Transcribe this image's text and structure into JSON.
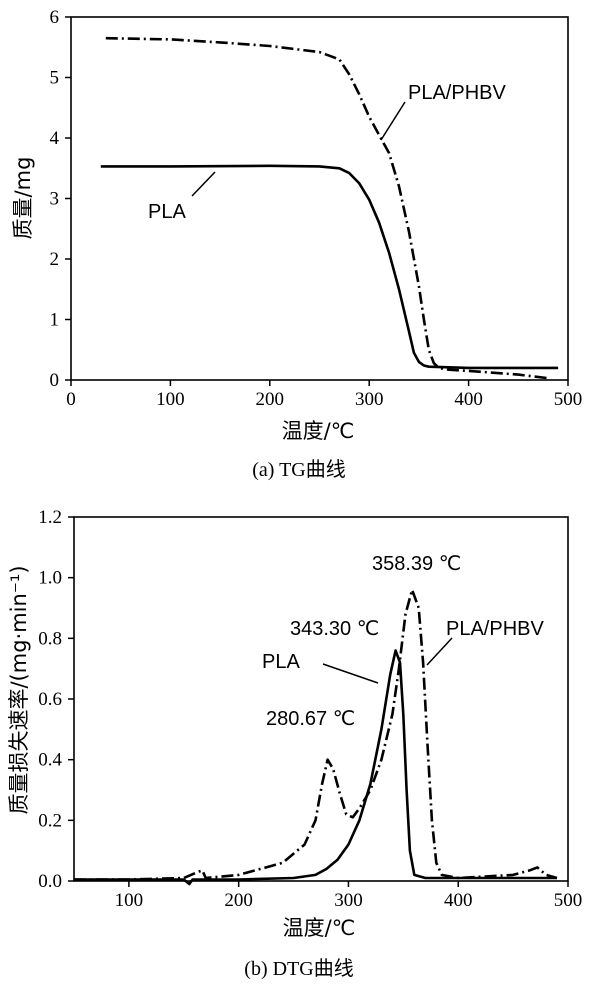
{
  "chart_data": [
    {
      "type": "line",
      "caption": "(a) TG曲线",
      "xlabel": "温度/℃",
      "ylabel": "质量/mg",
      "xlim": [
        0,
        500
      ],
      "ylim": [
        0,
        6
      ],
      "xticks": [
        "0",
        "100",
        "200",
        "300",
        "400",
        "500"
      ],
      "yticks": [
        "0",
        "1",
        "2",
        "3",
        "4",
        "5",
        "6"
      ],
      "grid": false,
      "series": [
        {
          "name": "PLA",
          "style": "solid",
          "x": [
            30,
            100,
            200,
            250,
            270,
            280,
            290,
            300,
            310,
            320,
            330,
            340,
            345,
            350,
            355,
            360,
            400,
            450,
            490
          ],
          "y": [
            3.53,
            3.53,
            3.54,
            3.53,
            3.5,
            3.42,
            3.25,
            2.98,
            2.6,
            2.1,
            1.5,
            0.8,
            0.45,
            0.3,
            0.24,
            0.22,
            0.2,
            0.2,
            0.2
          ]
        },
        {
          "name": "PLA/PHBV",
          "style": "dash-dot",
          "x": [
            35,
            100,
            150,
            200,
            250,
            270,
            280,
            290,
            300,
            310,
            320,
            330,
            340,
            350,
            355,
            360,
            365,
            370,
            380,
            400,
            450,
            480
          ],
          "y": [
            5.65,
            5.63,
            5.58,
            5.52,
            5.42,
            5.3,
            5.05,
            4.72,
            4.35,
            4.05,
            3.75,
            3.2,
            2.45,
            1.55,
            1.0,
            0.5,
            0.28,
            0.2,
            0.17,
            0.15,
            0.09,
            0.03
          ]
        }
      ],
      "annotations": [
        {
          "text": "PLA",
          "series": "PLA"
        },
        {
          "text": "PLA/PHBV",
          "series": "PLA/PHBV"
        }
      ]
    },
    {
      "type": "line",
      "caption": "(b) DTG曲线",
      "xlabel": "温度/℃",
      "ylabel": "质量损失速率/(mg·min⁻¹)",
      "xlim": [
        50,
        500
      ],
      "ylim": [
        0,
        1.2
      ],
      "xticks": [
        "100",
        "200",
        "300",
        "400",
        "500"
      ],
      "yticks": [
        "0.0",
        "0.2",
        "0.4",
        "0.6",
        "0.8",
        "1.0",
        "1.2"
      ],
      "grid": false,
      "series": [
        {
          "name": "PLA",
          "style": "solid",
          "x": [
            50,
            100,
            150,
            155,
            158,
            165,
            200,
            250,
            270,
            280,
            290,
            300,
            310,
            320,
            330,
            338,
            343,
            347,
            350,
            353,
            356,
            360,
            370,
            400,
            450,
            490
          ],
          "y": [
            0.005,
            0.005,
            0.005,
            -0.01,
            0.005,
            0.005,
            0.005,
            0.01,
            0.02,
            0.04,
            0.07,
            0.12,
            0.2,
            0.32,
            0.5,
            0.68,
            0.76,
            0.72,
            0.55,
            0.3,
            0.1,
            0.02,
            0.01,
            0.01,
            0.01,
            0.01
          ]
        },
        {
          "name": "PLA/PHBV",
          "style": "dash-dot",
          "x": [
            50,
            100,
            150,
            163,
            167,
            170,
            200,
            240,
            260,
            270,
            276,
            281,
            286,
            292,
            298,
            304,
            310,
            320,
            330,
            340,
            346,
            352,
            358,
            364,
            368,
            372,
            376,
            380,
            385,
            400,
            450,
            465,
            472,
            480,
            490
          ],
          "y": [
            0.005,
            0.005,
            0.01,
            0.03,
            0.035,
            0.01,
            0.02,
            0.06,
            0.12,
            0.2,
            0.32,
            0.4,
            0.37,
            0.29,
            0.22,
            0.21,
            0.24,
            0.3,
            0.4,
            0.55,
            0.7,
            0.88,
            0.96,
            0.9,
            0.72,
            0.45,
            0.2,
            0.06,
            0.02,
            0.01,
            0.02,
            0.035,
            0.045,
            0.02,
            0.01
          ]
        }
      ],
      "annotations": [
        {
          "text": "358.39 ℃",
          "x": 358.39
        },
        {
          "text": "343.30 ℃",
          "x": 343.3
        },
        {
          "text": "280.67 ℃",
          "x": 280.67
        },
        {
          "text": "PLA",
          "series": "PLA"
        },
        {
          "text": "PLA/PHBV",
          "series": "PLA/PHBV"
        }
      ]
    }
  ],
  "labels": {
    "a_series1": "PLA",
    "a_series2": "PLA/PHBV",
    "b_series1": "PLA",
    "b_series2": "PLA/PHBV",
    "b_peak1": "358.39 ℃",
    "b_peak2": "343.30 ℃",
    "b_peak3": "280.67 ℃"
  }
}
